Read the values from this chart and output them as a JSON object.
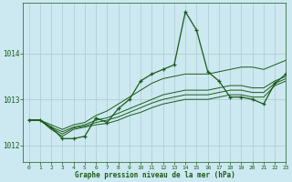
{
  "title": "Graphe pression niveau de la mer (hPa)",
  "background_color": "#cce8f0",
  "grid_color": "#aacccc",
  "line_color": "#1a5c1a",
  "xlim": [
    -0.5,
    23
  ],
  "ylim": [
    1011.65,
    1015.1
  ],
  "yticks": [
    1012,
    1013,
    1014
  ],
  "xticks": [
    0,
    1,
    2,
    3,
    4,
    5,
    6,
    7,
    8,
    9,
    10,
    11,
    12,
    13,
    14,
    15,
    16,
    17,
    18,
    19,
    20,
    21,
    22,
    23
  ],
  "series": [
    {
      "x": [
        0,
        1,
        2,
        3,
        4,
        5,
        6,
        7,
        8,
        9,
        10,
        11,
        12,
        13,
        14,
        15,
        16,
        17,
        18,
        19,
        20,
        21,
        22,
        23
      ],
      "y": [
        1012.55,
        1012.55,
        1012.4,
        1012.15,
        1012.15,
        1012.2,
        1012.6,
        1012.5,
        1012.8,
        1013.0,
        1013.4,
        1013.55,
        1013.65,
        1013.75,
        1014.9,
        1014.5,
        1013.6,
        1013.4,
        1013.05,
        1013.05,
        1013.0,
        1012.9,
        1013.35,
        1013.55
      ],
      "has_markers": true
    },
    {
      "x": [
        0,
        1,
        2,
        3,
        4,
        5,
        6,
        7,
        8,
        9,
        10,
        11,
        12,
        13,
        14,
        15,
        16,
        17,
        18,
        19,
        20,
        21,
        22,
        23
      ],
      "y": [
        1012.55,
        1012.55,
        1012.45,
        1012.35,
        1012.45,
        1012.5,
        1012.65,
        1012.75,
        1012.9,
        1013.05,
        1013.2,
        1013.35,
        1013.45,
        1013.5,
        1013.55,
        1013.55,
        1013.55,
        1013.6,
        1013.65,
        1013.7,
        1013.7,
        1013.65,
        1013.75,
        1013.85
      ],
      "has_markers": false
    },
    {
      "x": [
        0,
        1,
        2,
        3,
        4,
        5,
        6,
        7,
        8,
        9,
        10,
        11,
        12,
        13,
        14,
        15,
        16,
        17,
        18,
        19,
        20,
        21,
        22,
        23
      ],
      "y": [
        1012.55,
        1012.55,
        1012.4,
        1012.3,
        1012.4,
        1012.45,
        1012.55,
        1012.6,
        1012.7,
        1012.8,
        1012.9,
        1013.0,
        1013.1,
        1013.15,
        1013.2,
        1013.2,
        1013.2,
        1013.25,
        1013.3,
        1013.3,
        1013.25,
        1013.25,
        1013.4,
        1013.5
      ],
      "has_markers": false
    },
    {
      "x": [
        0,
        1,
        2,
        3,
        4,
        5,
        6,
        7,
        8,
        9,
        10,
        11,
        12,
        13,
        14,
        15,
        16,
        17,
        18,
        19,
        20,
        21,
        22,
        23
      ],
      "y": [
        1012.55,
        1012.55,
        1012.38,
        1012.25,
        1012.38,
        1012.42,
        1012.5,
        1012.55,
        1012.62,
        1012.72,
        1012.82,
        1012.92,
        1013.0,
        1013.05,
        1013.1,
        1013.1,
        1013.1,
        1013.15,
        1013.2,
        1013.2,
        1013.15,
        1013.15,
        1013.35,
        1013.45
      ],
      "has_markers": false
    },
    {
      "x": [
        0,
        1,
        2,
        3,
        4,
        5,
        6,
        7,
        8,
        9,
        10,
        11,
        12,
        13,
        14,
        15,
        16,
        17,
        18,
        19,
        20,
        21,
        22,
        23
      ],
      "y": [
        1012.55,
        1012.55,
        1012.35,
        1012.2,
        1012.35,
        1012.4,
        1012.45,
        1012.48,
        1012.55,
        1012.65,
        1012.72,
        1012.82,
        1012.9,
        1012.95,
        1013.0,
        1013.0,
        1013.0,
        1013.05,
        1013.1,
        1013.1,
        1013.05,
        1013.05,
        1013.3,
        1013.4
      ],
      "has_markers": false
    }
  ]
}
